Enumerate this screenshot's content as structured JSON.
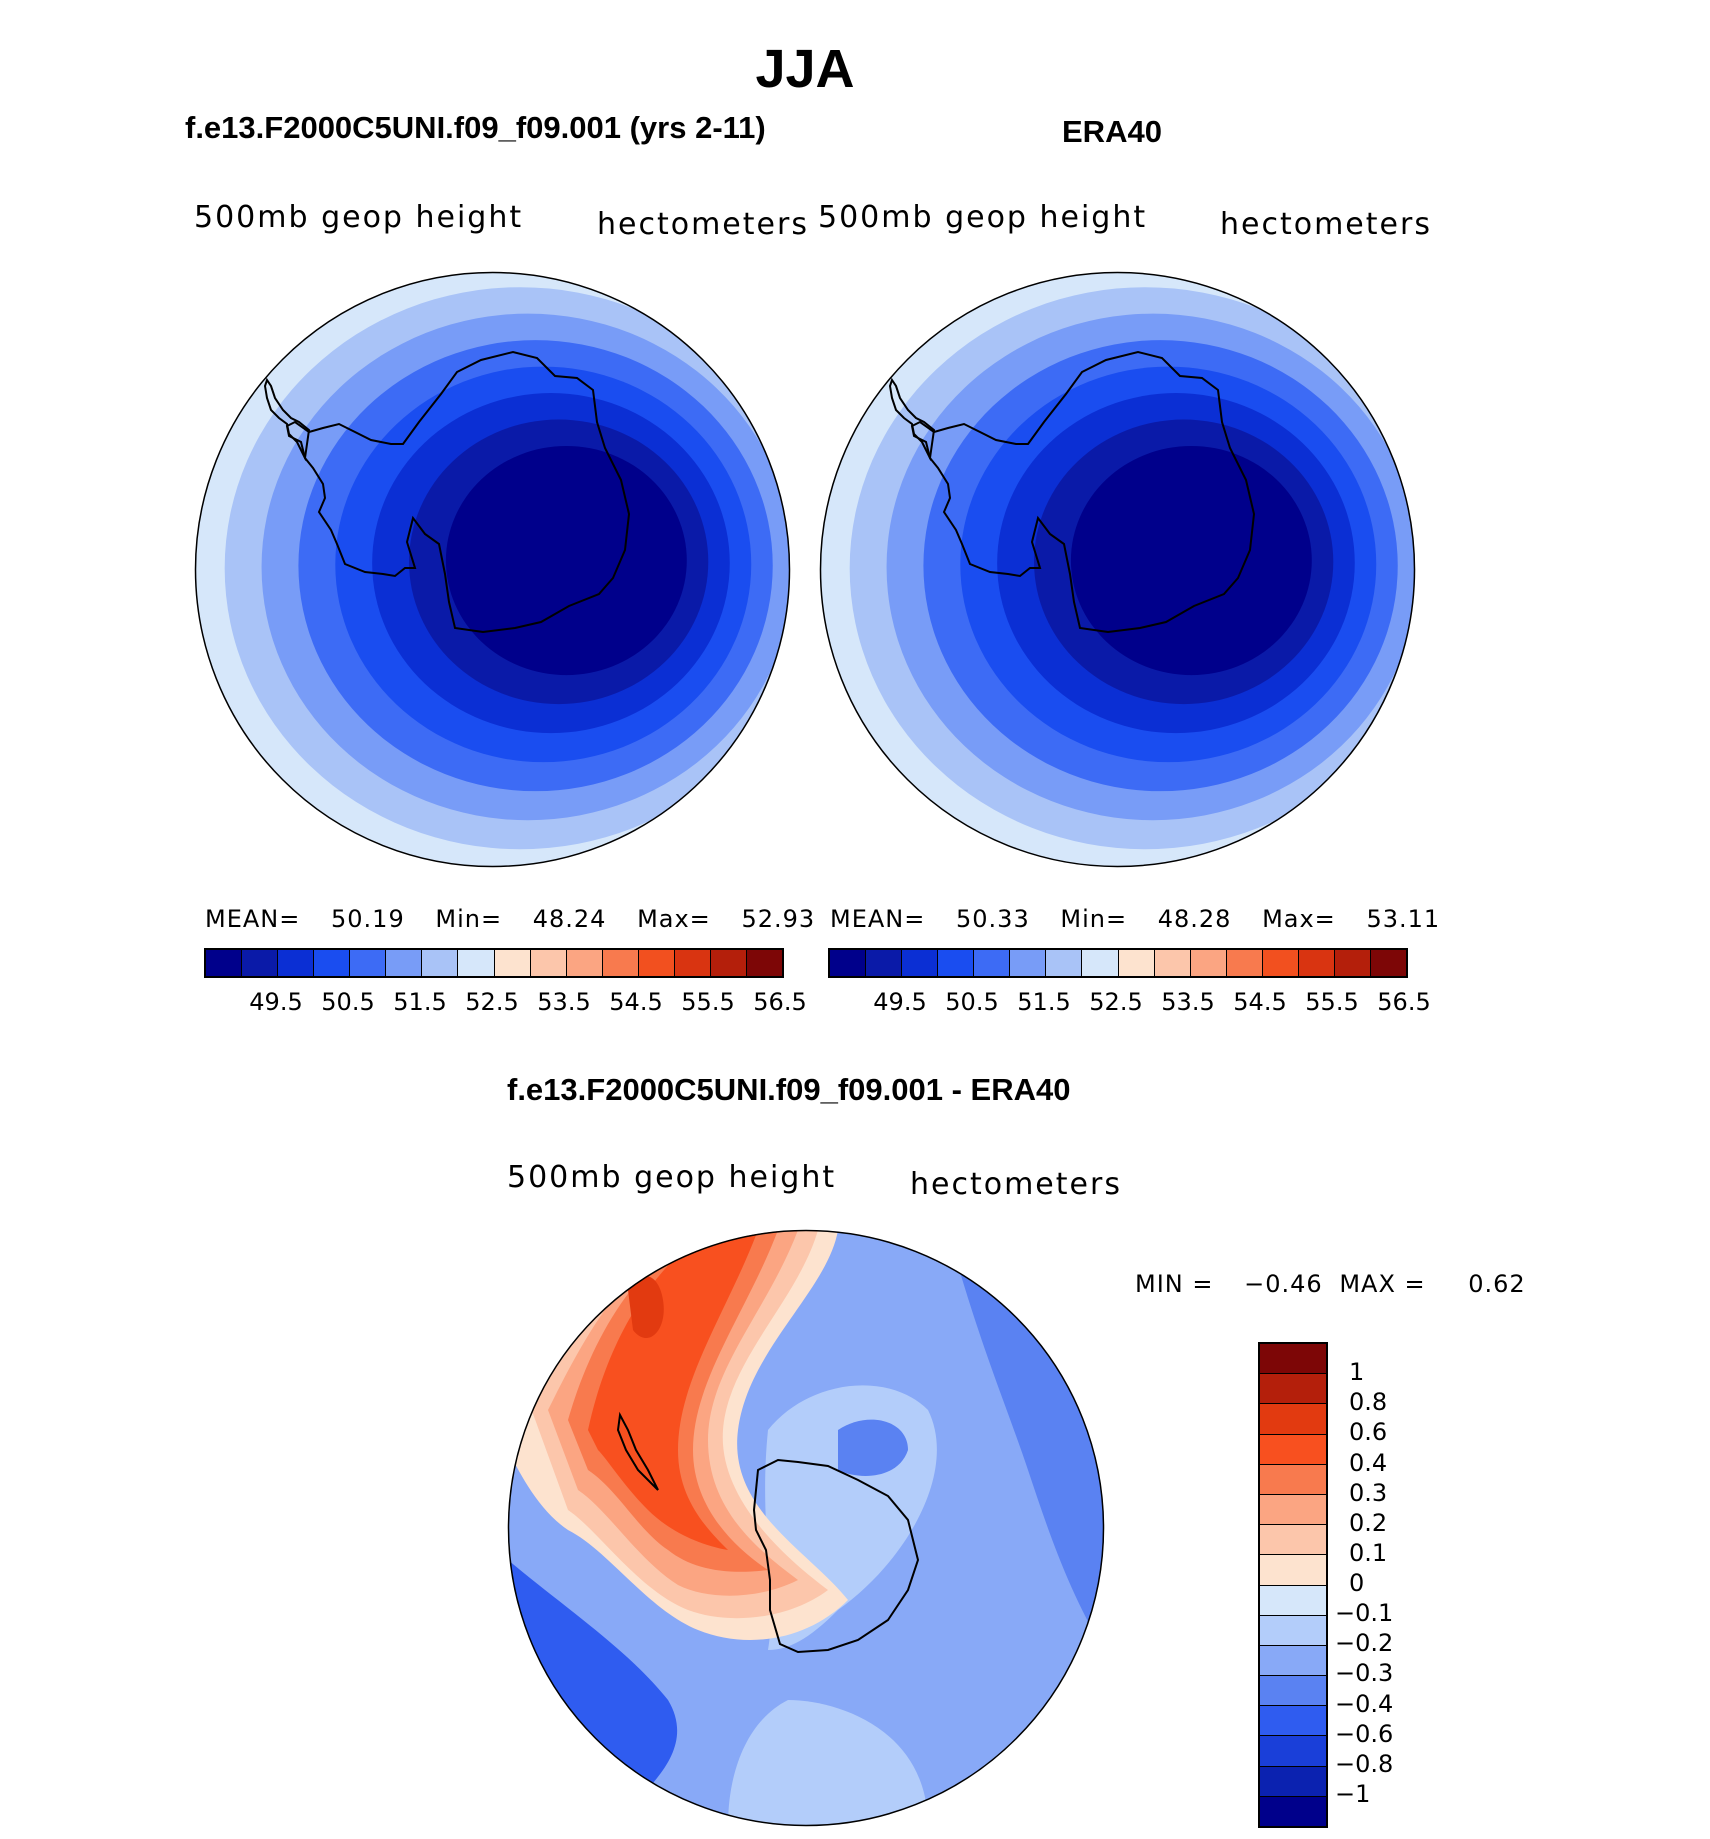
{
  "chart_data": [
    {
      "type": "heatmap",
      "title": "f.e13.F2000C5UNI.f09_f09.001 (yrs 2-11)",
      "suptitle": "JJA",
      "variable_label": "500mb geop height",
      "units_label": "hectometers",
      "projection": "south polar stereographic",
      "stats": {
        "mean_label": "MEAN=",
        "mean": "50.19",
        "min_label": "Min=",
        "min": "48.24",
        "max_label": "Max=",
        "max": "52.93"
      },
      "colorbar_ticks": [
        "49.5",
        "50.5",
        "51.5",
        "52.5",
        "53.5",
        "54.5",
        "55.5",
        "56.5"
      ],
      "contour_levels": [
        49.5,
        50,
        50.5,
        51,
        51.5,
        52,
        52.5,
        53,
        53.5,
        54,
        54.5,
        55,
        55.5,
        56,
        56.5
      ],
      "colors": [
        "#00008b",
        "#0a1aa8",
        "#0b2fd4",
        "#1a4df0",
        "#3d6bf5",
        "#789cf7",
        "#a9c3f7",
        "#d6e7fa",
        "#fde3cf",
        "#fcc6ab",
        "#fba582",
        "#f87a4e",
        "#f2501f",
        "#d93411",
        "#b41f0b",
        "#7d0606"
      ],
      "contour_rings": [
        {
          "level": 52.5,
          "band_color": "#d6e7fa"
        },
        {
          "level": 52.0,
          "band_color": "#a9c3f7"
        },
        {
          "level": 51.5,
          "band_color": "#789cf7"
        },
        {
          "level": 51.0,
          "band_color": "#3d6bf5"
        },
        {
          "level": 50.5,
          "band_color": "#1a4df0"
        },
        {
          "level": 50.0,
          "band_color": "#0b2fd4"
        },
        {
          "level": 49.5,
          "band_color": "#0a1aa8"
        },
        {
          "level": 49.0,
          "band_color": "#00008b"
        }
      ]
    },
    {
      "type": "heatmap",
      "title": "ERA40",
      "variable_label": "500mb geop height",
      "units_label": "hectometers",
      "projection": "south polar stereographic",
      "stats": {
        "mean_label": "MEAN=",
        "mean": "50.33",
        "min_label": "Min=",
        "min": "48.28",
        "max_label": "Max=",
        "max": "53.11"
      },
      "colorbar_ticks": [
        "49.5",
        "50.5",
        "51.5",
        "52.5",
        "53.5",
        "54.5",
        "55.5",
        "56.5"
      ],
      "contour_levels": [
        49.5,
        50,
        50.5,
        51,
        51.5,
        52,
        52.5,
        53,
        53.5,
        54,
        54.5,
        55,
        55.5,
        56,
        56.5
      ],
      "colors": [
        "#00008b",
        "#0a1aa8",
        "#0b2fd4",
        "#1a4df0",
        "#3d6bf5",
        "#789cf7",
        "#a9c3f7",
        "#d6e7fa",
        "#fde3cf",
        "#fcc6ab",
        "#fba582",
        "#f87a4e",
        "#f2501f",
        "#d93411",
        "#b41f0b",
        "#7d0606"
      ],
      "contour_rings": [
        {
          "level": 52.5,
          "band_color": "#d6e7fa"
        },
        {
          "level": 52.0,
          "band_color": "#a9c3f7"
        },
        {
          "level": 51.5,
          "band_color": "#789cf7"
        },
        {
          "level": 51.0,
          "band_color": "#3d6bf5"
        },
        {
          "level": 50.5,
          "band_color": "#1a4df0"
        },
        {
          "level": 50.0,
          "band_color": "#0b2fd4"
        },
        {
          "level": 49.5,
          "band_color": "#0a1aa8"
        },
        {
          "level": 49.0,
          "band_color": "#00008b"
        }
      ]
    },
    {
      "type": "heatmap",
      "title": "f.e13.F2000C5UNI.f09_f09.001 - ERA40",
      "variable_label": "500mb geop height",
      "units_label": "hectometers",
      "projection": "south polar stereographic",
      "stats": {
        "min_label": "MIN =",
        "min": "−0.46",
        "max_label": "MAX =",
        "max": "0.62"
      },
      "colorbar_ticks": [
        "1",
        "0.8",
        "0.6",
        "0.4",
        "0.3",
        "0.2",
        "0.1",
        "0",
        "−0.1",
        "−0.2",
        "−0.3",
        "−0.4",
        "−0.6",
        "−0.8",
        "−1"
      ],
      "contour_levels": [
        -1,
        -0.8,
        -0.6,
        -0.4,
        -0.3,
        -0.2,
        -0.1,
        0,
        0.1,
        0.2,
        0.3,
        0.4,
        0.6,
        0.8,
        1
      ],
      "colors_top_to_bottom": [
        "#7d0606",
        "#b41f0b",
        "#e23a10",
        "#f8501f",
        "#f87a4e",
        "#fba582",
        "#fcc6ab",
        "#fde3cf",
        "#d6e7fa",
        "#b3cdfa",
        "#88a9f7",
        "#5a82f2",
        "#2f5cf0",
        "#1a3fd9",
        "#0b22b0",
        "#00008b"
      ]
    }
  ]
}
